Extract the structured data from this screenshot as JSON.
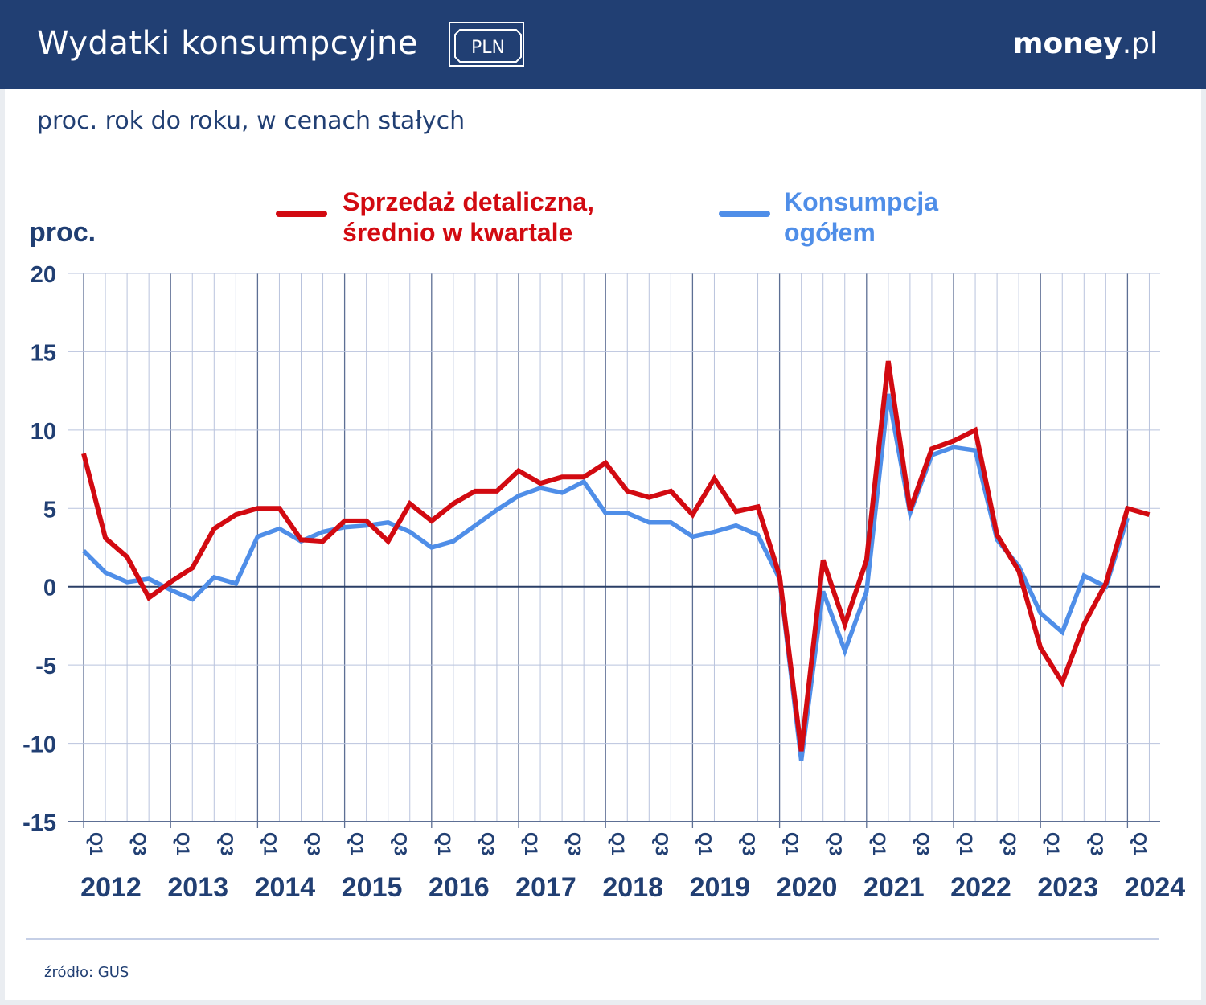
{
  "header": {
    "title": "Wydatki konsumpcyjne",
    "badge": "PLN",
    "brand_bold": "money",
    "brand_light": ".pl"
  },
  "subtitle": "proc. rok do roku, w cenach stałych",
  "source": "źródło: GUS",
  "colors": {
    "header_bg": "#213f73",
    "retail": "#d20a11",
    "consumption": "#4f8ee8",
    "axis_text": "#213f73",
    "grid": "#b9c3dd"
  },
  "chart_data": {
    "type": "line",
    "title": "Wydatki konsumpcyjne",
    "subtitle": "proc. rok do roku, w cenach stałych",
    "ylabel": "proc.",
    "xlabel": "",
    "ylim": [
      -15,
      20
    ],
    "yticks": [
      20,
      15,
      10,
      5,
      0,
      -5,
      -10,
      -15
    ],
    "grid": true,
    "legend_position": "top",
    "quarter_tick_labels": [
      "Q1",
      "Q3"
    ],
    "years": [
      "2012",
      "2013",
      "2014",
      "2015",
      "2016",
      "2017",
      "2018",
      "2019",
      "2020",
      "2021",
      "2022",
      "2023",
      "2024"
    ],
    "series": [
      {
        "name": "Sprzedaż detaliczna, średnio w kwartale",
        "legend_lines": [
          "Sprzedaż detaliczna,",
          "średnio w kwartale"
        ],
        "color": "#d20a11",
        "values": [
          8.5,
          3.1,
          1.9,
          -0.7,
          0.3,
          1.2,
          3.7,
          4.6,
          5.0,
          5.0,
          3.0,
          2.9,
          4.2,
          4.2,
          2.9,
          5.3,
          4.2,
          5.3,
          6.1,
          6.1,
          7.4,
          6.6,
          7.0,
          7.0,
          7.9,
          6.1,
          5.7,
          6.1,
          4.6,
          6.9,
          4.8,
          5.1,
          0.7,
          -10.5,
          1.7,
          -2.4,
          1.7,
          14.4,
          4.9,
          8.8,
          9.3,
          10.0,
          3.3,
          1.0,
          -3.9,
          -6.1,
          -2.4,
          0.2,
          5.0,
          4.6
        ]
      },
      {
        "name": "Konsumpcja ogółem",
        "legend_lines": [
          "Konsumpcja",
          "ogółem"
        ],
        "color": "#4f8ee8",
        "values": [
          2.3,
          0.9,
          0.3,
          0.5,
          -0.2,
          -0.8,
          0.6,
          0.2,
          3.2,
          3.7,
          2.9,
          3.5,
          3.8,
          3.9,
          4.1,
          3.5,
          2.5,
          2.9,
          3.9,
          4.9,
          5.8,
          6.3,
          6.0,
          6.7,
          4.7,
          4.7,
          4.1,
          4.1,
          3.2,
          3.5,
          3.9,
          3.3,
          0.5,
          -11.1,
          -0.3,
          -4.1,
          -0.3,
          12.3,
          4.7,
          8.4,
          8.9,
          8.7,
          3.0,
          1.3,
          -1.7,
          -2.9,
          0.7,
          0.0,
          4.4
        ]
      }
    ]
  }
}
